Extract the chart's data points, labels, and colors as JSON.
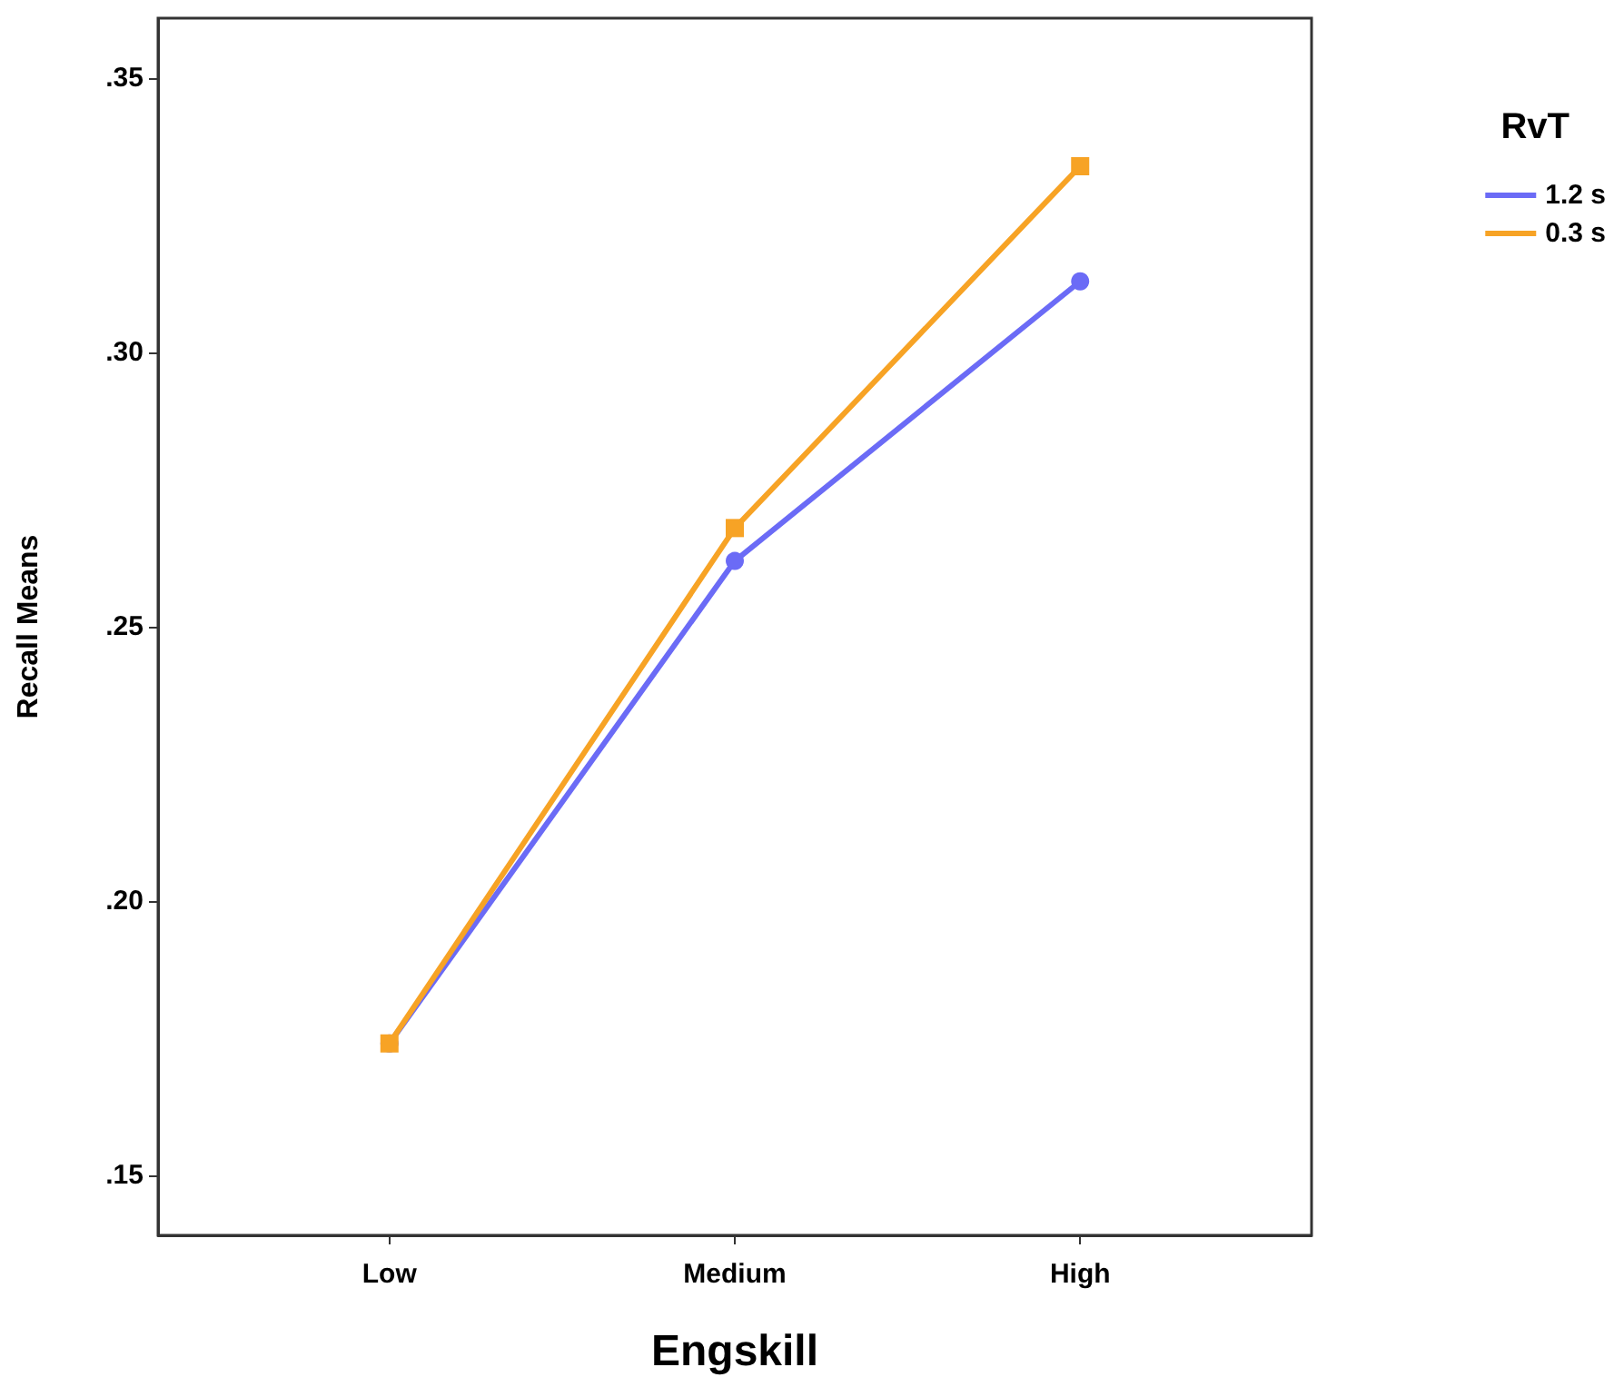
{
  "chart_data": {
    "type": "line",
    "xlabel": "Engskill",
    "ylabel": "Recall Means",
    "legend_title": "RvT",
    "legend": "top right",
    "grid": false,
    "categories": [
      "Low",
      "Medium",
      "High"
    ],
    "ylim": [
      0.139,
      0.361
    ],
    "yticks": [
      {
        "value": 0.15,
        "label": ".15"
      },
      {
        "value": 0.2,
        "label": ".20"
      },
      {
        "value": 0.25,
        "label": ".25"
      },
      {
        "value": 0.3,
        "label": ".30"
      },
      {
        "value": 0.35,
        "label": ".35"
      }
    ],
    "series": [
      {
        "name": "1.2 s",
        "color": "#6b6bf6",
        "marker": "circle",
        "values": [
          0.174,
          0.262,
          0.313
        ]
      },
      {
        "name": "0.3 s",
        "color": "#f7a325",
        "marker": "square",
        "values": [
          0.174,
          0.268,
          0.334
        ]
      }
    ]
  }
}
